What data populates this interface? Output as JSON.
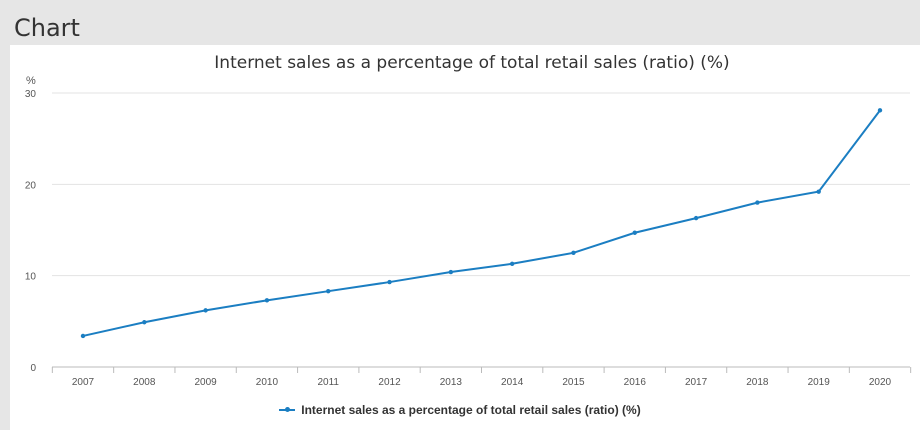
{
  "header": {
    "title": "Chart"
  },
  "chart_data": {
    "type": "line",
    "title": "Internet sales as a percentage of total retail sales (ratio) (%)",
    "ylabel": "%",
    "xlabel": "",
    "ylim": [
      0,
      30
    ],
    "yticks": [
      0,
      10,
      20,
      30
    ],
    "categories": [
      "2007",
      "2008",
      "2009",
      "2010",
      "2011",
      "2012",
      "2013",
      "2014",
      "2015",
      "2016",
      "2017",
      "2018",
      "2019",
      "2020"
    ],
    "series": [
      {
        "name": "Internet sales as a percentage of total retail sales (ratio) (%)",
        "color": "#1b7ec2",
        "values": [
          3.4,
          4.9,
          6.2,
          7.3,
          8.3,
          9.3,
          10.4,
          11.3,
          12.5,
          14.7,
          16.3,
          18.0,
          19.2,
          28.1
        ]
      }
    ],
    "grid": true,
    "legend_position": "bottom"
  }
}
